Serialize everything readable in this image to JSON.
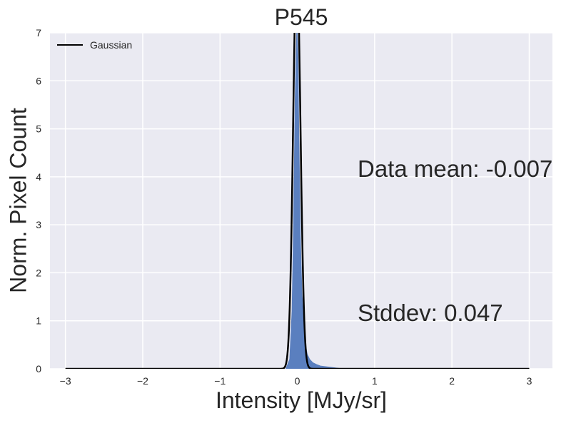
{
  "chart_data": {
    "type": "area",
    "title": "P545",
    "xlabel": "Intensity [MJy/sr]",
    "ylabel": "Norm. Pixel Count",
    "xlim": [
      -3.2,
      3.3
    ],
    "ylim": [
      0,
      7
    ],
    "xticks": [
      -3,
      -2,
      -1,
      0,
      1,
      2,
      3
    ],
    "xtick_labels": [
      "−3",
      "−2",
      "−1",
      "0",
      "1",
      "2",
      "3"
    ],
    "yticks": [
      0,
      1,
      2,
      3,
      4,
      5,
      6,
      7
    ],
    "ytick_labels": [
      "0",
      "1",
      "2",
      "3",
      "4",
      "5",
      "6",
      "7"
    ],
    "grid": true,
    "legend": {
      "position": "top-left",
      "entries": [
        "Gaussian"
      ]
    },
    "series": [
      {
        "name": "Gaussian",
        "kind": "line",
        "color": "#000000",
        "mean": -0.007,
        "stddev": 0.047
      },
      {
        "kind": "histogram",
        "color": "#5a7fbf",
        "x": [
          -0.15,
          -0.1,
          -0.07,
          -0.05,
          -0.03,
          -0.01,
          0.0,
          0.01,
          0.02,
          0.04,
          0.06,
          0.08,
          0.1,
          0.13,
          0.16,
          0.2,
          0.25,
          0.3,
          0.4,
          0.5,
          0.6
        ],
        "y": [
          0.0,
          0.2,
          1.2,
          3.0,
          5.6,
          7.0,
          7.0,
          6.5,
          5.0,
          2.8,
          1.6,
          1.0,
          0.55,
          0.3,
          0.2,
          0.13,
          0.09,
          0.06,
          0.04,
          0.02,
          0.0
        ]
      }
    ],
    "annotations": [
      "Data mean: -0.007",
      "Stddev: 0.047"
    ]
  },
  "colors": {
    "plot_background": "#eaeaf2",
    "grid": "#ffffff",
    "axis_text": "#262626"
  }
}
